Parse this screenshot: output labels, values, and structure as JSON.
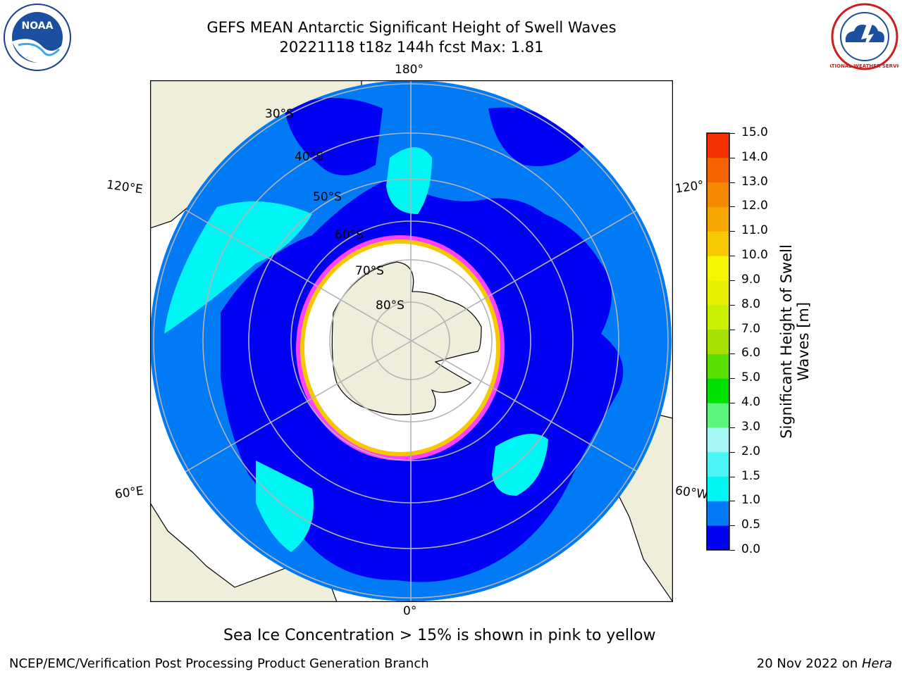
{
  "header": {
    "title_line1": "GEFS MEAN Antarctic Significant Height of Swell Waves",
    "title_line2": "20221118 t18z 144h fcst   Max: 1.81"
  },
  "logos": {
    "left": {
      "icon": "noaa-logo",
      "text": "NOAA"
    },
    "right": {
      "icon": "national-weather-service-logo",
      "text": "NATIONAL WEATHER SERVICE"
    }
  },
  "map": {
    "projection": "south-polar-stereographic",
    "longitude_labels": {
      "top": "180°",
      "bottom": "0°",
      "upper_left": "120°E",
      "upper_right": "120°",
      "lower_left": "60°E",
      "lower_right": "60°W"
    },
    "latitude_labels": [
      "30°S",
      "40°S",
      "50°S",
      "60°S",
      "70°S",
      "80°S"
    ],
    "colors": {
      "land": "#efeedb",
      "swell_0_05": "#0000f5",
      "swell_05_1": "#007af5",
      "swell_1_15": "#00f5f5",
      "sea_ice_edge": "#ff40ff",
      "ice_interior": "#ffffff",
      "graticule": "#b4b4b4"
    }
  },
  "colorbar": {
    "label": "Significant Height of Swell Waves [m]",
    "ticks": [
      "0.0",
      "0.5",
      "1.0",
      "1.5",
      "2.0",
      "3.0",
      "4.0",
      "5.0",
      "6.0",
      "7.0",
      "8.0",
      "9.0",
      "10.0",
      "11.0",
      "12.0",
      "13.0",
      "14.0",
      "15.0"
    ],
    "colors": [
      "#0000f5",
      "#007af5",
      "#00f5f5",
      "#4cf5f5",
      "#a6f5f5",
      "#5af57a",
      "#00e000",
      "#5ae000",
      "#a6e000",
      "#c8f000",
      "#e6f000",
      "#f5f500",
      "#f5c800",
      "#f5a600",
      "#f58a00",
      "#f56400",
      "#f53200"
    ]
  },
  "notes": {
    "sea_ice": "Sea Ice Concentration > 15% is shown in pink to yellow",
    "footer_left": "NCEP/EMC/Verification Post Processing Product Generation Branch",
    "footer_right_date": "20 Nov 2022 on ",
    "footer_right_host": "Hera"
  }
}
